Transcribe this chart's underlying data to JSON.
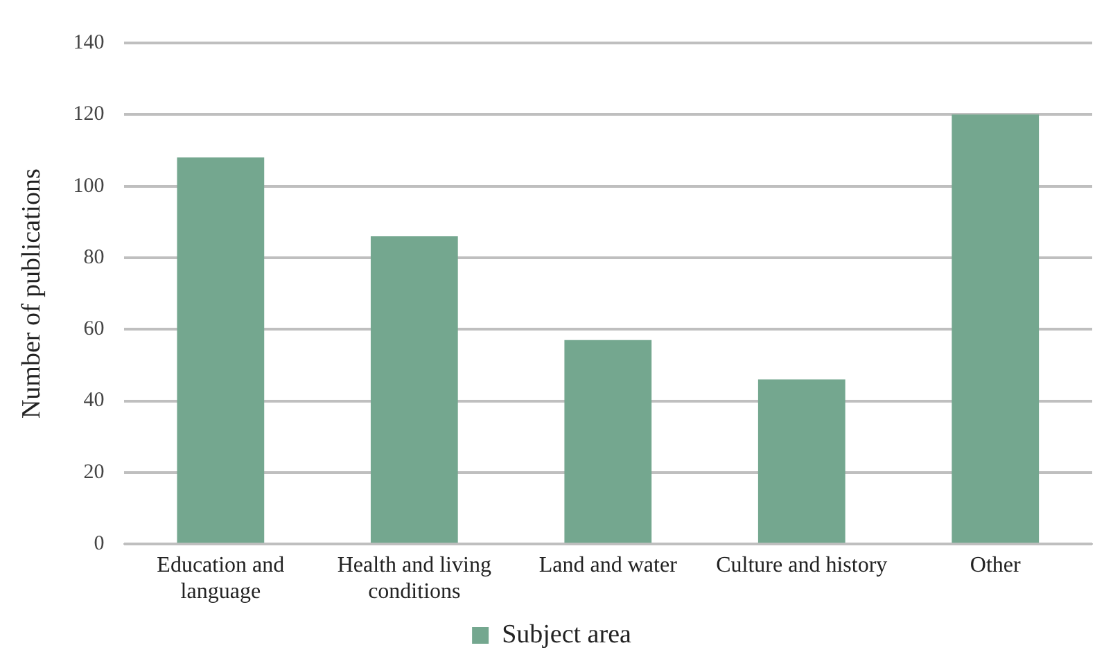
{
  "chart_data": {
    "type": "bar",
    "ylabel": "Number of publications",
    "categories": [
      "Education and language",
      "Health and living conditions",
      "Land and water",
      "Culture and history",
      "Other"
    ],
    "series": [
      {
        "name": "Subject area",
        "color": "#74a78f",
        "values": [
          108,
          86,
          57,
          46,
          120
        ]
      }
    ],
    "ylim": [
      0,
      140
    ],
    "yticks": [
      0,
      20,
      40,
      60,
      80,
      100,
      120,
      140
    ],
    "grid": "y",
    "legend": "bottom"
  }
}
